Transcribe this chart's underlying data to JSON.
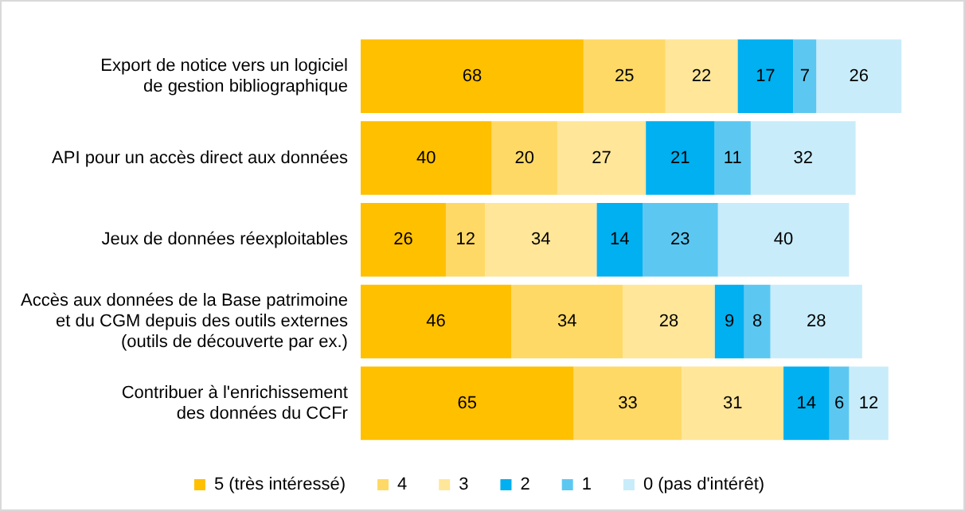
{
  "chart_data": {
    "type": "bar",
    "orientation": "horizontal",
    "stacked": true,
    "data_labels": true,
    "legend": "bottom",
    "categories": [
      "Export de notice vers un logiciel\nde gestion bibliographique",
      "API pour un accès direct aux données",
      "Jeux de données réexploitables",
      "Accès aux données de la Base patrimoine\net du CGM depuis des outils externes\n(outils de découverte par ex.)",
      "Contribuer à l'enrichissement\ndes données du CCFr"
    ],
    "series": [
      {
        "name": "5 (très intéressé)",
        "color": "#ffc000",
        "values": [
          68,
          40,
          26,
          46,
          65
        ]
      },
      {
        "name": "4",
        "color": "#ffd966",
        "values": [
          25,
          20,
          12,
          34,
          33
        ]
      },
      {
        "name": "3",
        "color": "#ffe699",
        "values": [
          22,
          27,
          34,
          28,
          31
        ]
      },
      {
        "name": "2",
        "color": "#00b0f0",
        "values": [
          17,
          21,
          14,
          9,
          14
        ]
      },
      {
        "name": "1",
        "color": "#5cc8f2",
        "values": [
          7,
          11,
          23,
          8,
          6
        ]
      },
      {
        "name": "0 (pas d'intérêt)",
        "color": "#c9ecfa",
        "values": [
          26,
          32,
          40,
          28,
          12
        ]
      }
    ]
  }
}
